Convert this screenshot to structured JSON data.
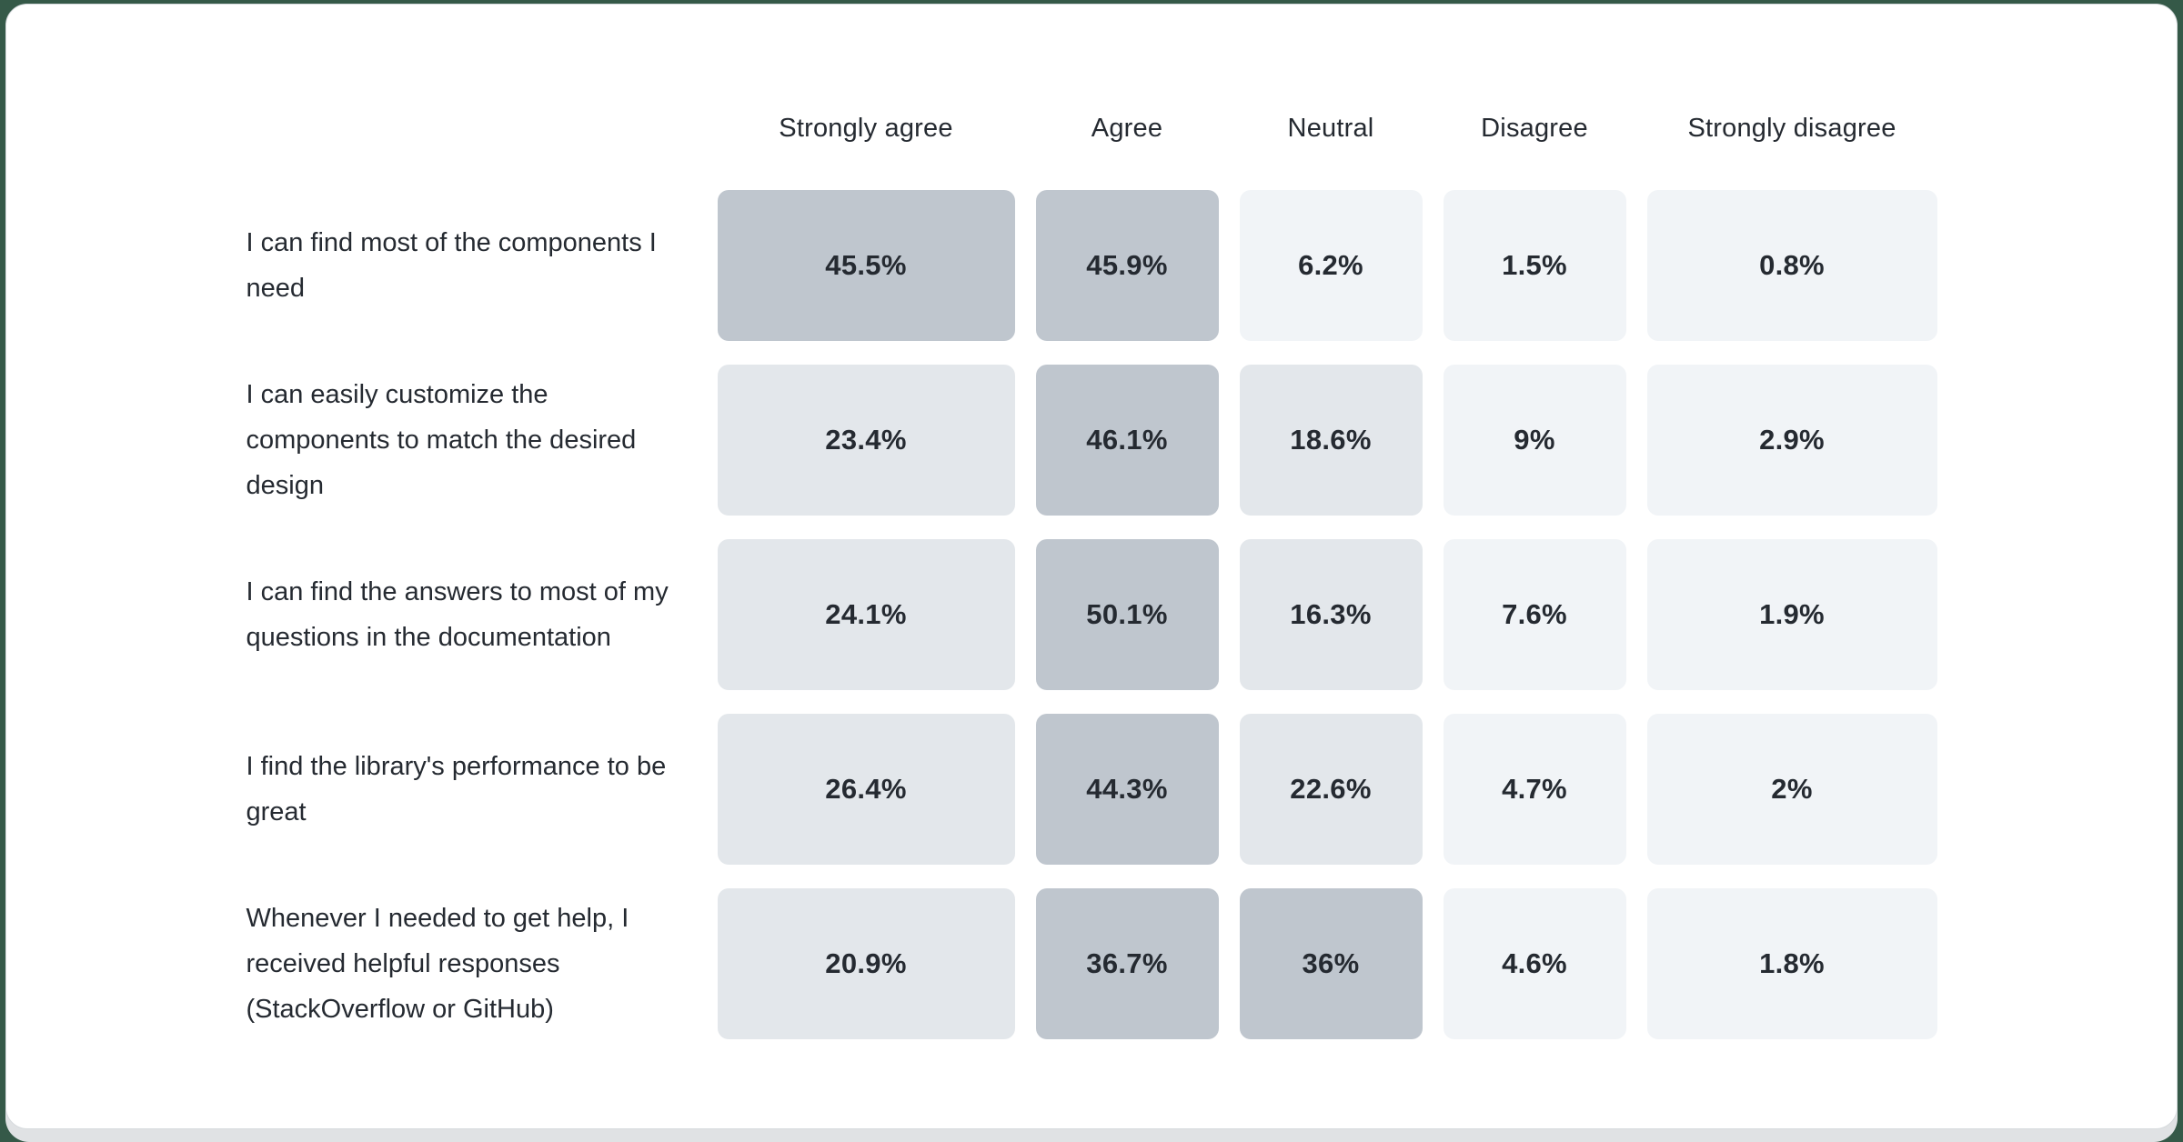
{
  "page": {
    "background_color": "#355948",
    "backdrop_color": "#e0e2e4",
    "card_background": "#ffffff",
    "card_border_color": "#d6dadd"
  },
  "chart_data": {
    "type": "heatmap",
    "title": "",
    "columns": [
      "Strongly agree",
      "Agree",
      "Neutral",
      "Disagree",
      "Strongly disagree"
    ],
    "rows": [
      {
        "label": "I can find most of the components I need",
        "values": [
          45.5,
          45.9,
          6.2,
          1.5,
          0.8
        ]
      },
      {
        "label": "I can easily customize the components to match the desired design",
        "values": [
          23.4,
          46.1,
          18.6,
          9,
          2.9
        ]
      },
      {
        "label": "I can find the answers to most of my questions in the documentation",
        "values": [
          24.1,
          50.1,
          16.3,
          7.6,
          1.9
        ]
      },
      {
        "label": "I find the library's performance to be great",
        "values": [
          26.4,
          44.3,
          22.6,
          4.7,
          2
        ]
      },
      {
        "label": "Whenever I needed to get help, I received helpful responses (StackOverflow or GitHub)",
        "values": [
          20.9,
          36.7,
          36,
          4.6,
          1.8
        ]
      }
    ],
    "value_suffix": "%",
    "cell_values_display": [
      [
        "45.5%",
        "45.9%",
        "6.2%",
        "1.5%",
        "0.8%"
      ],
      [
        "23.4%",
        "46.1%",
        "18.6%",
        "9%",
        "2.9%"
      ],
      [
        "24.1%",
        "50.1%",
        "16.3%",
        "7.6%",
        "1.9%"
      ],
      [
        "26.4%",
        "44.3%",
        "22.6%",
        "4.7%",
        "2%"
      ],
      [
        "20.9%",
        "36.7%",
        "36%",
        "4.6%",
        "1.8%"
      ]
    ],
    "legend_position": "none",
    "grid": false,
    "color_scale": {
      "high": {
        "min": 30,
        "color": "#bfc6ce"
      },
      "mid": {
        "min": 10,
        "color": "#e3e7eb"
      },
      "low": {
        "min": 0,
        "color": "#f1f4f7"
      }
    },
    "text_color": "#252a31"
  }
}
